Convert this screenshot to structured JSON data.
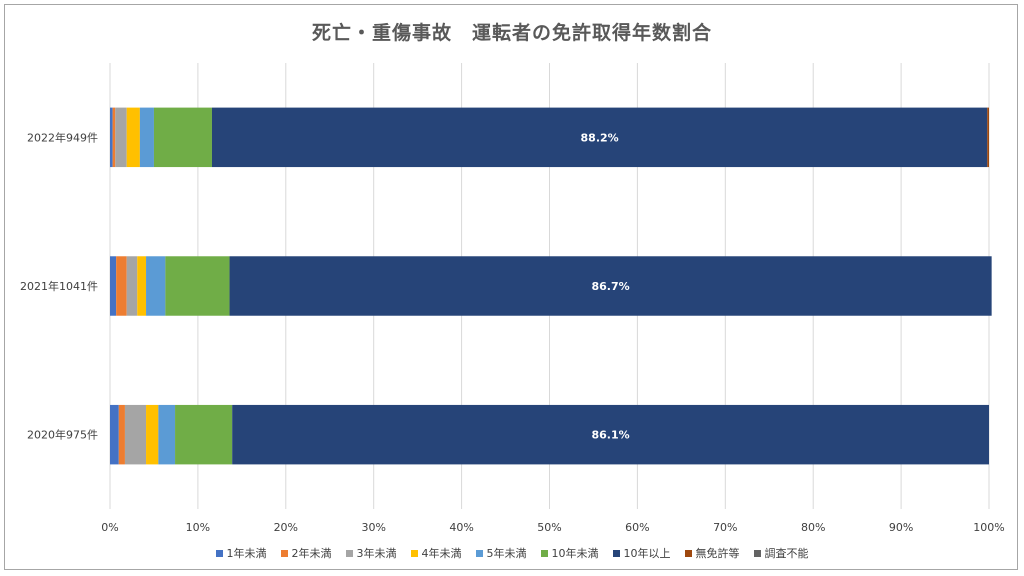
{
  "chart_data": {
    "type": "bar",
    "orientation": "horizontal",
    "stacked": true,
    "percent": true,
    "title": "死亡・重傷事故　運転者の免許取得年数割合",
    "categories": [
      "2022年949件",
      "2021年1041件",
      "2020年975件"
    ],
    "xlim": [
      0,
      100
    ],
    "xticks": [
      "0%",
      "10%",
      "20%",
      "30%",
      "40%",
      "50%",
      "60%",
      "70%",
      "80%",
      "90%",
      "100%"
    ],
    "grid": true,
    "legend_position": "bottom",
    "series": [
      {
        "name": "1年未満",
        "color": "#4472c4",
        "values": [
          0.3,
          0.7,
          1.0
        ]
      },
      {
        "name": "2年未満",
        "color": "#ed7d31",
        "values": [
          0.3,
          1.2,
          0.7
        ]
      },
      {
        "name": "3年未満",
        "color": "#a5a5a5",
        "values": [
          1.3,
          1.2,
          2.4
        ]
      },
      {
        "name": "4年未満",
        "color": "#ffc000",
        "values": [
          1.5,
          1.0,
          1.4
        ]
      },
      {
        "name": "5年未満",
        "color": "#5b9bd5",
        "values": [
          1.6,
          2.2,
          1.9
        ]
      },
      {
        "name": "10年未満",
        "color": "#70ad47",
        "values": [
          6.6,
          7.3,
          6.5
        ]
      },
      {
        "name": "10年以上",
        "color": "#264478",
        "values": [
          88.2,
          86.7,
          86.1
        ]
      },
      {
        "name": "無免許等",
        "color": "#9e480e",
        "values": [
          0.2,
          0.0,
          0.0
        ]
      },
      {
        "name": "調査不能",
        "color": "#636363",
        "values": [
          0.0,
          0.0,
          0.0
        ]
      }
    ],
    "data_labels": {
      "series": "10年以上",
      "values": [
        "88.2%",
        "86.7%",
        "86.1%"
      ]
    }
  }
}
